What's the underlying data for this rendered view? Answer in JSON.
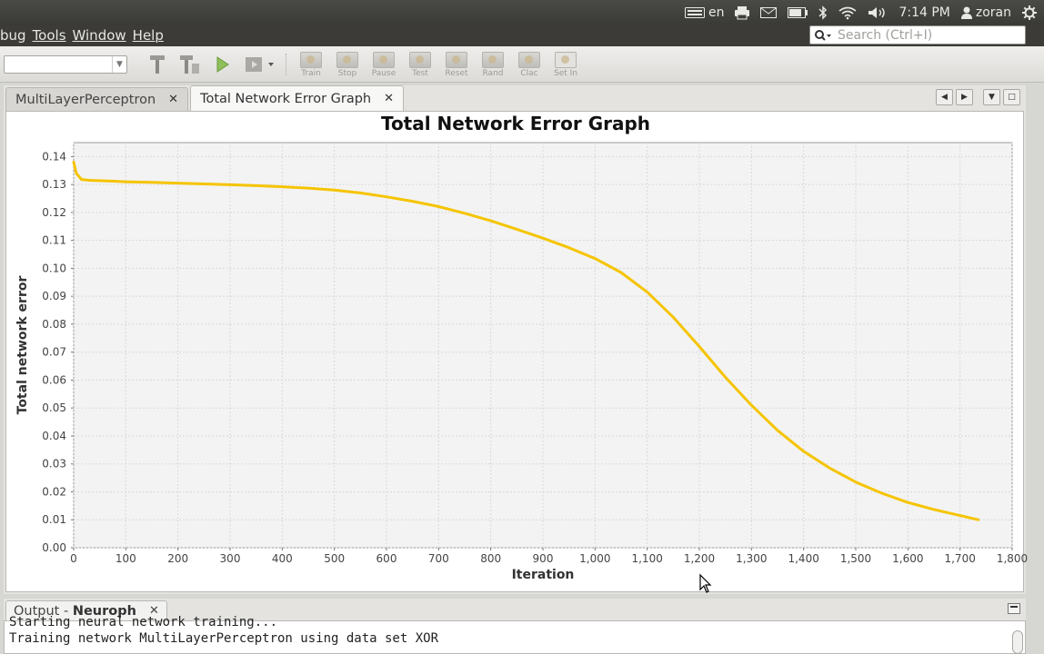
{
  "system_panel": {
    "keyboard_layout": "en",
    "time": "7:14 PM",
    "user": "zoran"
  },
  "menubar": {
    "items": [
      "bug",
      "Tools",
      "Window",
      "Help"
    ]
  },
  "search": {
    "placeholder": "Search (Ctrl+I)"
  },
  "toolbar": {
    "buttons": [
      "Train",
      "Stop",
      "Pause",
      "Test",
      "Reset",
      "Rand",
      "Clac",
      "Set In"
    ]
  },
  "tabs": [
    {
      "label": "MultiLayerPerceptron",
      "active": false
    },
    {
      "label": "Total Network Error Graph",
      "active": true
    }
  ],
  "chart_data": {
    "type": "line",
    "title": "Total Network Error Graph",
    "xlabel": "Iteration",
    "ylabel": "Total network error",
    "xlim": [
      0,
      1800
    ],
    "ylim": [
      0,
      0.145
    ],
    "x_ticks": [
      "0",
      "100",
      "200",
      "300",
      "400",
      "500",
      "600",
      "700",
      "800",
      "900",
      "1,000",
      "1,100",
      "1,200",
      "1,300",
      "1,400",
      "1,500",
      "1,600",
      "1,700",
      "1,800"
    ],
    "y_ticks": [
      "0.00",
      "0.01",
      "0.02",
      "0.03",
      "0.04",
      "0.05",
      "0.06",
      "0.07",
      "0.08",
      "0.09",
      "0.10",
      "0.11",
      "0.12",
      "0.13",
      "0.14"
    ],
    "grid": true,
    "color": "#f5c400",
    "series": [
      {
        "x": [
          0,
          5,
          15,
          30,
          60,
          100,
          150,
          200,
          250,
          300,
          350,
          400,
          450,
          500,
          550,
          600,
          650,
          700,
          750,
          800,
          850,
          900,
          950,
          1000,
          1050,
          1100,
          1150,
          1200,
          1250,
          1300,
          1350,
          1400,
          1450,
          1500,
          1550,
          1600,
          1650,
          1700,
          1735
        ],
        "y": [
          0.138,
          0.134,
          0.1318,
          0.1315,
          0.1313,
          0.131,
          0.1308,
          0.1305,
          0.1302,
          0.1299,
          0.1296,
          0.1292,
          0.1287,
          0.128,
          0.127,
          0.1256,
          0.124,
          0.1221,
          0.1197,
          0.117,
          0.114,
          0.1108,
          0.1074,
          0.1035,
          0.0985,
          0.0915,
          0.0825,
          0.072,
          0.061,
          0.051,
          0.042,
          0.0345,
          0.0285,
          0.0235,
          0.0195,
          0.0162,
          0.0137,
          0.0115,
          0.01
        ]
      }
    ]
  },
  "output": {
    "tab_prefix": "Output - ",
    "tab_name": "Neuroph",
    "lines": [
      "Starting neural network training...",
      "Training network MultiLayerPerceptron using data set XOR"
    ]
  }
}
